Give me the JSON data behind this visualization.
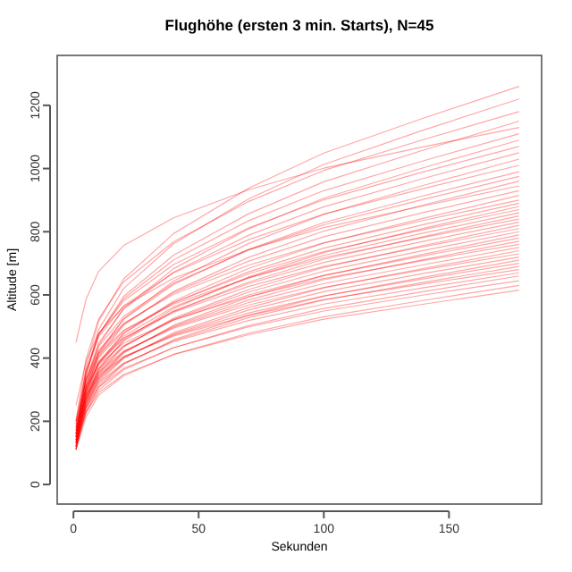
{
  "chart_data": {
    "type": "line",
    "title": "Flughöhe (ersten 3 min. Starts), N=45",
    "xlabel": "Sekunden",
    "ylabel": "Altitude [m]",
    "x": [
      1,
      5,
      10,
      20,
      40,
      70,
      100,
      140,
      178
    ],
    "xlim": [
      -6.5,
      187
    ],
    "ylim": [
      -62,
      1358
    ],
    "xticks": [
      0,
      50,
      100,
      150
    ],
    "yticks": [
      0,
      200,
      400,
      600,
      800,
      1000,
      1200
    ],
    "line_style": "solid",
    "series": [
      {
        "color": "#ff0000",
        "values": [
          150,
          372,
          516,
          650,
          794,
          938,
          1049,
          1160,
          1260
        ]
      },
      {
        "color": "#ff0000",
        "values": [
          130,
          348,
          490,
          620,
          762,
          904,
          1013,
          1122,
          1220
        ]
      },
      {
        "color": "#ff0000",
        "values": [
          200,
          396,
          523,
          641,
          768,
          896,
          994,
          1092,
          1180
        ]
      },
      {
        "color": "#ff0000",
        "values": [
          140,
          342,
          473,
          595,
          726,
          857,
          958,
          1059,
          1150
        ]
      },
      {
        "color": "#ff0000",
        "values": [
          450,
          586,
          674,
          756,
          844,
          933,
          1001,
          1069,
          1130
        ]
      },
      {
        "color": "#ff0000",
        "values": [
          160,
          350,
          474,
          588,
          711,
          835,
          930,
          1025,
          1110
        ]
      },
      {
        "color": "#ff0000",
        "values": [
          120,
          314,
          440,
          557,
          683,
          809,
          906,
          1003,
          1090
        ]
      },
      {
        "color": "#ff0000",
        "values": [
          180,
          358,
          474,
          581,
          696,
          812,
          901,
          990,
          1070
        ]
      },
      {
        "color": "#ff0000",
        "values": [
          150,
          330,
          447,
          555,
          672,
          789,
          879,
          969,
          1050
        ]
      },
      {
        "color": "#ff0000",
        "values": [
          110,
          294,
          414,
          524,
          644,
          763,
          855,
          947,
          1030
        ]
      },
      {
        "color": "#ff0000",
        "values": [
          200,
          362,
          467,
          565,
          670,
          775,
          856,
          937,
          1010
        ]
      },
      {
        "color": "#ff0000",
        "values": [
          140,
          310,
          421,
          523,
          633,
          744,
          829,
          914,
          990
        ]
      },
      {
        "color": "#ff0000",
        "values": [
          170,
          331,
          436,
          532,
          637,
          742,
          822,
          903,
          975
        ]
      },
      {
        "color": "#ff0000",
        "values": [
          130,
          296,
          404,
          504,
          611,
          719,
          802,
          885,
          960
        ]
      },
      {
        "color": "#ff0000",
        "values": [
          250,
          389,
          479,
          563,
          653,
          743,
          813,
          882,
          945
        ]
      },
      {
        "color": "#ff0000",
        "values": [
          160,
          314,
          414,
          507,
          607,
          707,
          784,
          861,
          930
        ]
      },
      {
        "color": "#ff0000",
        "values": [
          120,
          279,
          382,
          478,
          581,
          684,
          764,
          843,
          915
        ]
      },
      {
        "color": "#ff0000",
        "values": [
          190,
          332,
          424,
          510,
          602,
          694,
          765,
          836,
          900
        ]
      },
      {
        "color": "#ff0000",
        "values": [
          140,
          290,
          388,
          478,
          575,
          673,
          748,
          823,
          890
        ]
      },
      {
        "color": "#ff0000",
        "values": [
          110,
          264,
          364,
          457,
          557,
          657,
          734,
          811,
          880
        ]
      },
      {
        "color": "#ff0000",
        "values": [
          170,
          310,
          401,
          485,
          576,
          667,
          737,
          807,
          870
        ]
      },
      {
        "color": "#ff0000",
        "values": [
          150,
          292,
          384,
          470,
          562,
          654,
          725,
          796,
          860
        ]
      },
      {
        "color": "#ff0000",
        "values": [
          130,
          274,
          368,
          454,
          548,
          641,
          713,
          785,
          850
        ]
      },
      {
        "color": "#ff0000",
        "values": [
          200,
          328,
          411,
          488,
          571,
          654,
          718,
          782,
          840
        ]
      },
      {
        "color": "#ff0000",
        "values": [
          160,
          294,
          381,
          462,
          549,
          636,
          703,
          770,
          830
        ]
      },
      {
        "color": "#ff0000",
        "values": [
          120,
          260,
          351,
          435,
          526,
          617,
          687,
          757,
          820
        ]
      },
      {
        "color": "#ff0000",
        "values": [
          180,
          306,
          388,
          464,
          545,
          627,
          690,
          753,
          810
        ]
      },
      {
        "color": "#ff0000",
        "values": [
          140,
          272,
          358,
          437,
          523,
          609,
          675,
          741,
          800
        ]
      },
      {
        "color": "#ff0000",
        "values": [
          110,
          246,
          334,
          416,
          504,
          593,
          661,
          729,
          790
        ]
      },
      {
        "color": "#ff0000",
        "values": [
          160,
          284,
          365,
          439,
          520,
          600,
          662,
          724,
          780
        ]
      },
      {
        "color": "#ff0000",
        "values": [
          130,
          258,
          341,
          418,
          501,
          584,
          648,
          712,
          770
        ]
      },
      {
        "color": "#ff0000",
        "values": [
          190,
          304,
          378,
          447,
          521,
          595,
          652,
          709,
          760
        ]
      },
      {
        "color": "#ff0000",
        "values": [
          150,
          270,
          348,
          420,
          498,
          576,
          636,
          696,
          750
        ]
      },
      {
        "color": "#ff0000",
        "values": [
          120,
          244,
          325,
          399,
          480,
          560,
          622,
          684,
          740
        ]
      },
      {
        "color": "#ff0000",
        "values": [
          170,
          282,
          355,
          422,
          495,
          568,
          624,
          680,
          730
        ]
      },
      {
        "color": "#ff0000",
        "values": [
          140,
          256,
          331,
          401,
          476,
          552,
          610,
          668,
          720
        ]
      },
      {
        "color": "#ff0000",
        "values": [
          110,
          230,
          308,
          380,
          458,
          536,
          596,
          656,
          710
        ]
      },
      {
        "color": "#ff0000",
        "values": [
          160,
          268,
          338,
          403,
          473,
          543,
          597,
          651,
          700
        ]
      },
      {
        "color": "#ff0000",
        "values": [
          130,
          242,
          315,
          382,
          455,
          528,
          584,
          640,
          690
        ]
      },
      {
        "color": "#ff0000",
        "values": [
          180,
          280,
          345,
          405,
          470,
          535,
          585,
          635,
          680
        ]
      },
      {
        "color": "#ff0000",
        "values": [
          150,
          254,
          322,
          384,
          452,
          519,
          571,
          623,
          670
        ]
      },
      {
        "color": "#ff0000",
        "values": [
          120,
          228,
          298,
          363,
          433,
          503,
          557,
          611,
          660
        ]
      },
      {
        "color": "#ff0000",
        "values": [
          140,
          241,
          307,
          367,
          433,
          499,
          549,
          600,
          645
        ]
      },
      {
        "color": "#ff0000",
        "values": [
          110,
          214,
          282,
          344,
          412,
          479,
          531,
          583,
          630
        ]
      },
      {
        "color": "#ff0000",
        "values": [
          130,
          227,
          290,
          348,
          411,
          474,
          523,
          571,
          615
        ]
      }
    ]
  }
}
